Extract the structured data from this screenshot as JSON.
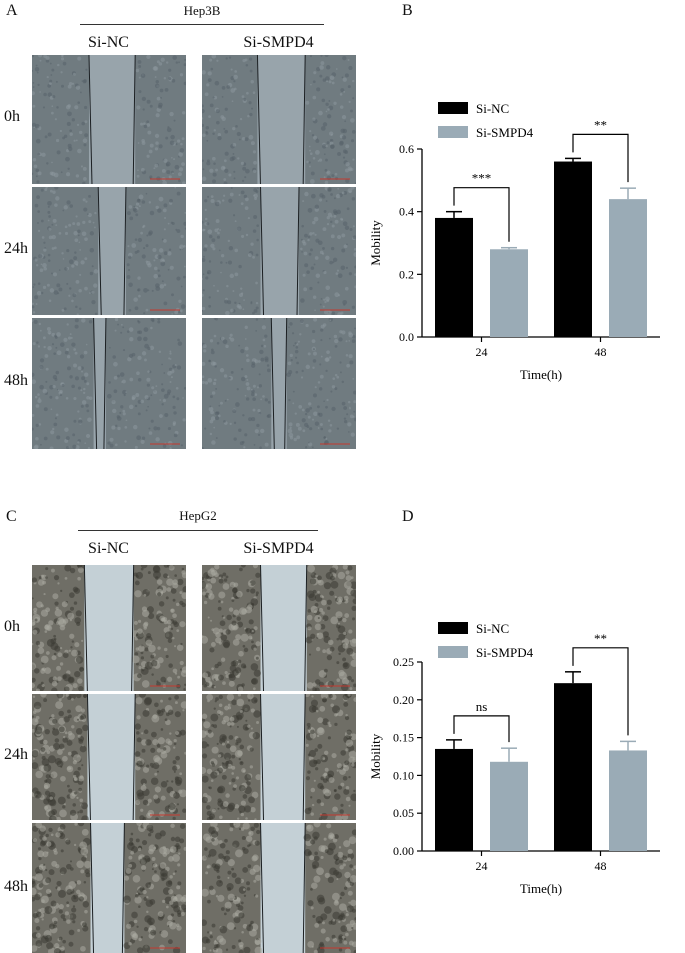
{
  "figure": {
    "panels": {
      "A": {
        "letter": "A",
        "cell_line": "Hep3B",
        "groups": [
          "Si-NC",
          "Si-SMPD4"
        ],
        "timepoints": [
          "0h",
          "24h",
          "48h"
        ]
      },
      "C": {
        "letter": "C",
        "cell_line": "HepG2",
        "groups": [
          "Si-NC",
          "Si-SMPD4"
        ],
        "timepoints": [
          "0h",
          "24h",
          "48h"
        ]
      }
    },
    "colors": {
      "si_nc": "#000000",
      "si_smpd4": "#9aabb6",
      "hep3b_tissue": "#707b80",
      "hep3b_gap": "#98a4ab",
      "hepg2_tissue": "#6f6e66",
      "hepg2_gap": "#c4d0d6"
    }
  },
  "chart_data": [
    {
      "panel": "B",
      "type": "bar",
      "categories": [
        "24",
        "48"
      ],
      "series": [
        {
          "name": "Si-NC",
          "values": [
            0.38,
            0.56
          ],
          "errors": [
            0.02,
            0.01
          ],
          "color": "#000000"
        },
        {
          "name": "Si-SMPD4",
          "values": [
            0.28,
            0.44
          ],
          "errors": [
            0.005,
            0.035
          ],
          "color": "#9aabb6"
        }
      ],
      "significance": [
        "***",
        "**"
      ],
      "xlabel": "Time(h)",
      "ylabel": "Mobility",
      "ylim": [
        0,
        0.6
      ],
      "yticks": [
        "0.0",
        "0.2",
        "0.4",
        "0.6"
      ],
      "legend": "top-left",
      "grid": false
    },
    {
      "panel": "D",
      "type": "bar",
      "categories": [
        "24",
        "48"
      ],
      "series": [
        {
          "name": "Si-NC",
          "values": [
            0.135,
            0.222
          ],
          "errors": [
            0.012,
            0.015
          ],
          "color": "#000000"
        },
        {
          "name": "Si-SMPD4",
          "values": [
            0.118,
            0.133
          ],
          "errors": [
            0.018,
            0.012
          ],
          "color": "#9aabb6"
        }
      ],
      "significance": [
        "ns",
        "**"
      ],
      "xlabel": "Time(h)",
      "ylabel": "Mobility",
      "ylim": [
        0,
        0.25
      ],
      "yticks": [
        "0.00",
        "0.05",
        "0.10",
        "0.15",
        "0.20",
        "0.25"
      ],
      "legend": "top-left",
      "grid": false
    }
  ],
  "panel_letters": {
    "B": "B",
    "D": "D"
  }
}
